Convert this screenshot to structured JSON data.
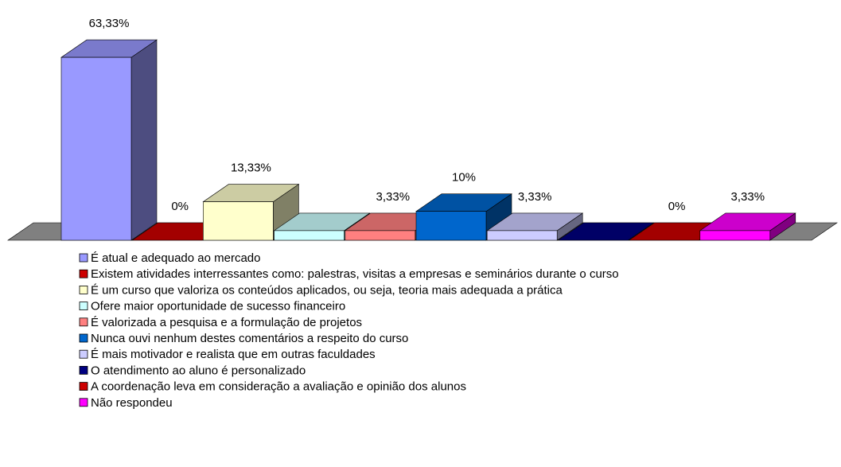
{
  "chart_data": {
    "type": "bar3d",
    "series": [
      {
        "name": "É atual e adequado ao mercado",
        "color": "#9999ff",
        "values": [
          63.33
        ],
        "value_labels": [
          "63,33%"
        ]
      },
      {
        "name": "Existem atividades interressantes como: palestras, visitas a empresas e seminários durante o curso",
        "color": "#cc0000",
        "values": [
          0
        ],
        "value_labels": [
          "0%"
        ]
      },
      {
        "name": "É um curso que valoriza os conteúdos aplicados, ou seja, teoria mais adequada a prática",
        "color": "#ffffcc",
        "values": [
          13.33
        ],
        "value_labels": [
          "13,33%"
        ]
      },
      {
        "name": "Ofere maior oportunidade de sucesso financeiro",
        "color": "#ccffff",
        "values": [
          3.33
        ],
        "value_labels": [
          null
        ]
      },
      {
        "name": "É valorizada a pesquisa e a formulação de projetos",
        "color": "#ff8080",
        "values": [
          3.33
        ],
        "value_labels": [
          "3,33%"
        ]
      },
      {
        "name": "Nunca ouvi nenhum destes comentários a respeito do curso",
        "color": "#0066cc",
        "values": [
          10
        ],
        "value_labels": [
          "10%"
        ]
      },
      {
        "name": "É mais motivador e realista que em outras faculdades",
        "color": "#ccccff",
        "values": [
          3.33
        ],
        "value_labels": [
          "3,33%"
        ]
      },
      {
        "name": "O atendimento ao aluno é personalizado",
        "color": "#000080",
        "values": [
          0
        ],
        "value_labels": [
          null
        ]
      },
      {
        "name": "A coordenação leva em consideração a avaliação e opinião dos alunos",
        "color": "#cc0000",
        "values": [
          0
        ],
        "value_labels": [
          "0%"
        ]
      },
      {
        "name": "Não respondeu",
        "color": "#ff00ff",
        "values": [
          3.33
        ],
        "value_labels": [
          "3,33%"
        ]
      }
    ]
  }
}
